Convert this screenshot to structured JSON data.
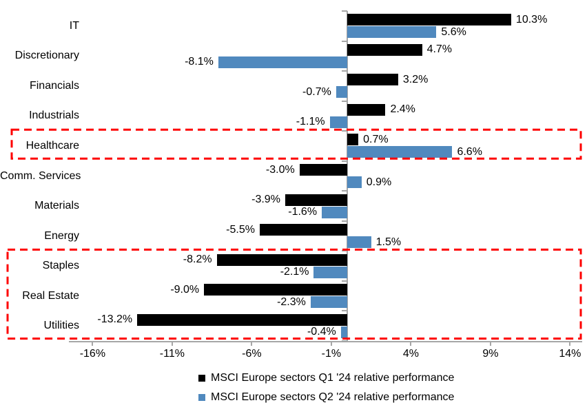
{
  "chart_data": {
    "type": "bar",
    "orientation": "horizontal",
    "title": "",
    "xlabel": "",
    "ylabel": "",
    "grid": false,
    "legend_position": "bottom",
    "xlim": [
      -17.5,
      14.8
    ],
    "categories": [
      "IT",
      "Discretionary",
      "Financials",
      "Industrials",
      "Healthcare",
      "Comm. Services",
      "Materials",
      "Energy",
      "Staples",
      "Real Estate",
      "Utilities"
    ],
    "series": [
      {
        "name": "MSCI Europe sectors Q1 '24 relative performance",
        "color": "#000000",
        "values": [
          10.3,
          4.7,
          3.2,
          2.4,
          0.7,
          -3.0,
          -3.9,
          -5.5,
          -8.2,
          -9.0,
          -13.2
        ],
        "value_labels": [
          "10.3%",
          "4.7%",
          "3.2%",
          "2.4%",
          "0.7%",
          "-3.0%",
          "-3.9%",
          "-5.5%",
          "-8.2%",
          "-9.0%",
          "-13.2%"
        ]
      },
      {
        "name": "MSCI Europe sectors Q2 '24 relative performance",
        "color": "#5089be",
        "values": [
          5.6,
          -8.1,
          -0.7,
          -1.1,
          6.6,
          0.9,
          -1.6,
          1.5,
          -2.1,
          -2.3,
          -0.4
        ],
        "value_labels": [
          "5.6%",
          "-8.1%",
          "-0.7%",
          "-1.1%",
          "6.6%",
          "0.9%",
          "-1.6%",
          "1.5%",
          "-2.1%",
          "-2.3%",
          "-0.4%"
        ]
      }
    ],
    "x_ticks": [
      {
        "value": -16,
        "label": "-16%"
      },
      {
        "value": -11,
        "label": "-11%"
      },
      {
        "value": -6,
        "label": "-6%"
      },
      {
        "value": -1,
        "label": "-1%"
      },
      {
        "value": 4,
        "label": "4%"
      },
      {
        "value": 9,
        "label": "9%"
      },
      {
        "value": 14,
        "label": "14%"
      }
    ],
    "highlights": [
      {
        "categories": [
          "Healthcare"
        ]
      },
      {
        "categories": [
          "Staples",
          "Real Estate",
          "Utilities"
        ]
      }
    ],
    "highlight_color": "#fe0000",
    "axis_color": "#a6a6a6"
  }
}
